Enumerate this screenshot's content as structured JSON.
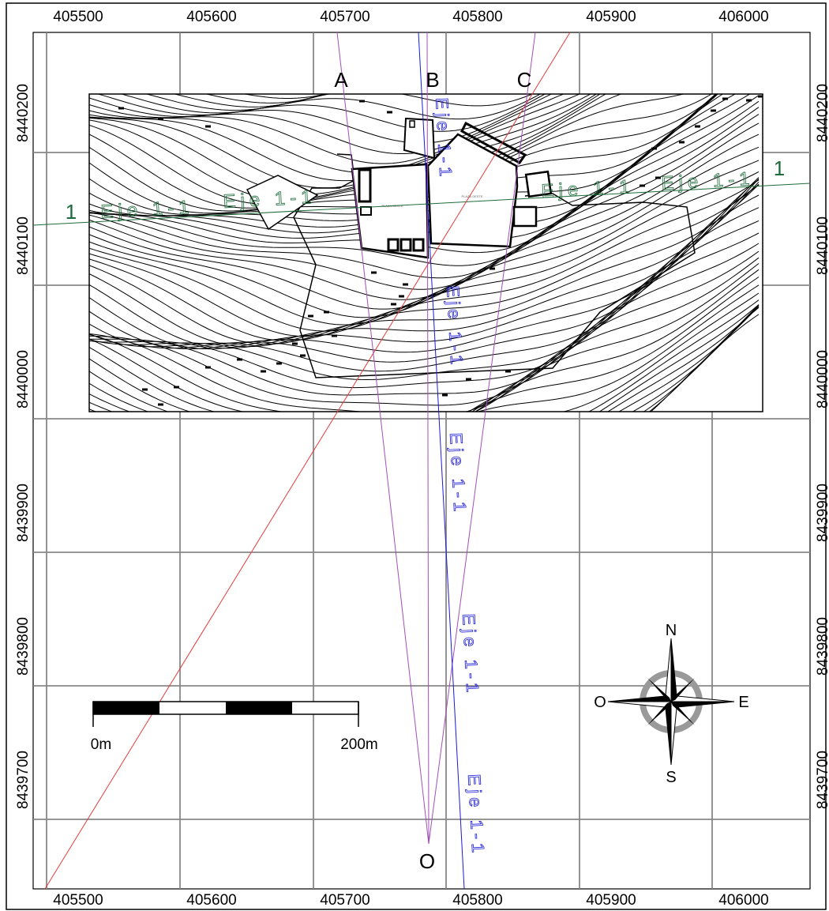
{
  "grid": {
    "easting_ticks": [
      "405500",
      "405600",
      "405700",
      "405800",
      "405900",
      "406000"
    ],
    "northing_ticks": [
      "8440200",
      "8440100",
      "8440000",
      "8439900",
      "8439800",
      "8439700"
    ]
  },
  "section_lines": [
    {
      "id": "A",
      "label": "A"
    },
    {
      "id": "B",
      "label": "B"
    },
    {
      "id": "C",
      "label": "C"
    }
  ],
  "origin_label": "O",
  "section_marker_label": "1",
  "axis_label": "Eje 1-1",
  "scale_bar": {
    "start": "0m",
    "end": "200m"
  },
  "compass": {
    "n": "N",
    "s": "S",
    "e": "E",
    "w": "O"
  },
  "site_label": "PLAZA OESTE",
  "colors": {
    "grid": "#888888",
    "contour": "#000000",
    "section_purple": "#a34fb8",
    "axis_blue": "#1a1ad8",
    "line_red": "#e53b3b",
    "green": "#1d6b3a"
  }
}
